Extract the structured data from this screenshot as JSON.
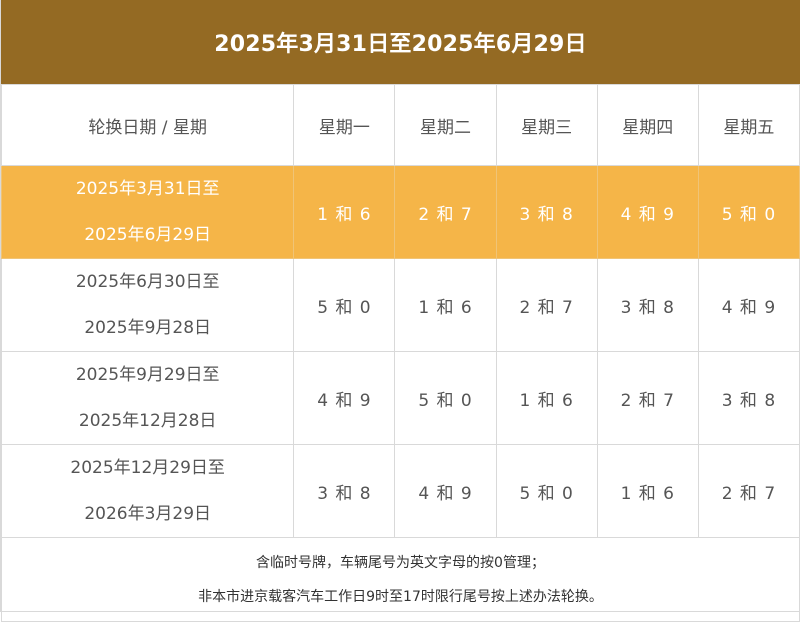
{
  "title": "2025年3月31日至2025年6月29日",
  "header": {
    "first": "轮换日期 / 星期",
    "days": [
      "星期一",
      "星期二",
      "星期三",
      "星期四",
      "星期五"
    ]
  },
  "rows": [
    {
      "range_start": "2025年3月31日至",
      "range_end": "2025年6月29日",
      "values": [
        "1 和 6",
        "2 和 7",
        "3 和 8",
        "4 和 9",
        "5 和 0"
      ],
      "highlighted": true
    },
    {
      "range_start": "2025年6月30日至",
      "range_end": "2025年9月28日",
      "values": [
        "5 和 0",
        "1 和 6",
        "2 和 7",
        "3 和 8",
        "4 和 9"
      ],
      "highlighted": false
    },
    {
      "range_start": "2025年9月29日至",
      "range_end": "2025年12月28日",
      "values": [
        "4 和 9",
        "5 和 0",
        "1 和 6",
        "2 和 7",
        "3 和 8"
      ],
      "highlighted": false
    },
    {
      "range_start": "2025年12月29日至",
      "range_end": "2026年3月29日",
      "values": [
        "3 和 8",
        "4 和 9",
        "5 和 0",
        "1 和 6",
        "2 和 7"
      ],
      "highlighted": false
    }
  ],
  "notes": [
    "含临时号牌，车辆尾号为英文字母的按0管理；",
    "非本市进京载客汽车工作日9时至17时限行尾号按上述办法轮换。"
  ],
  "colors": {
    "title_bg": "#946a23",
    "highlight_bg": "#f5b548",
    "border": "#d9d9d9",
    "text": "#555555"
  }
}
